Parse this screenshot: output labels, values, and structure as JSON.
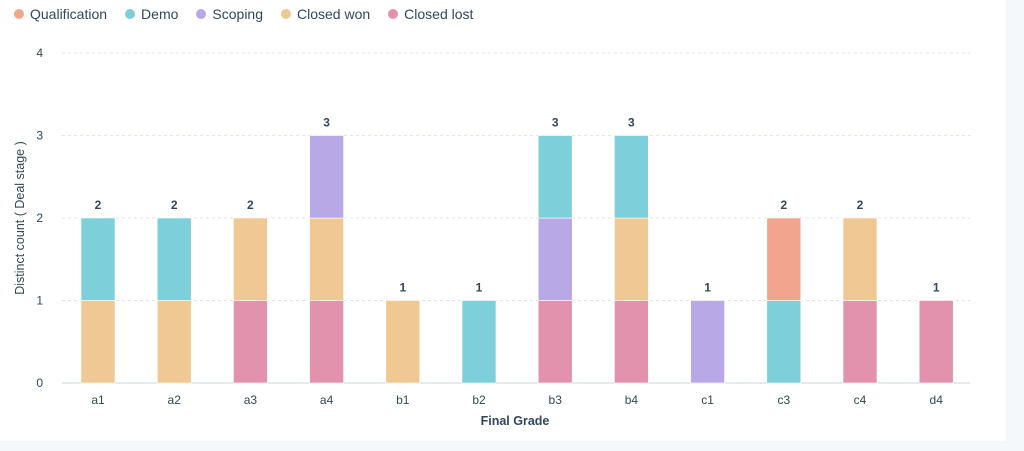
{
  "chart_data": {
    "type": "bar",
    "stacked": true,
    "categories": [
      "a1",
      "a2",
      "a3",
      "a4",
      "b1",
      "b2",
      "b3",
      "b4",
      "c1",
      "c3",
      "c4",
      "d4"
    ],
    "series": [
      {
        "name": "Qualification",
        "color": "#f2a58e",
        "values": [
          0,
          0,
          0,
          0,
          0,
          0,
          0,
          0,
          0,
          1,
          0,
          0
        ]
      },
      {
        "name": "Demo",
        "color": "#7dd0d9",
        "values": [
          1,
          1,
          0,
          0,
          0,
          1,
          1,
          1,
          0,
          1,
          0,
          0
        ]
      },
      {
        "name": "Scoping",
        "color": "#b9a8e6",
        "values": [
          0,
          0,
          0,
          1,
          0,
          0,
          1,
          0,
          1,
          0,
          0,
          0
        ]
      },
      {
        "name": "Closed won",
        "color": "#f0c894",
        "values": [
          1,
          1,
          1,
          1,
          1,
          0,
          0,
          1,
          0,
          0,
          1,
          0
        ]
      },
      {
        "name": "Closed lost",
        "color": "#e292ad",
        "values": [
          0,
          0,
          1,
          1,
          0,
          0,
          1,
          1,
          0,
          0,
          1,
          1
        ]
      }
    ],
    "totals": [
      "2",
      "2",
      "2",
      "3",
      "1",
      "1",
      "3",
      "3",
      "1",
      "2",
      "2",
      "1"
    ],
    "stack_order_bottom_to_top": [
      "Closed lost",
      "Closed won",
      "Scoping",
      "Demo",
      "Qualification"
    ],
    "xlabel": "Final Grade",
    "ylabel": "Distinct count ( Deal stage )",
    "ylim": [
      0,
      4
    ],
    "yticks": [
      "0",
      "1",
      "2",
      "3",
      "4"
    ],
    "grid": true,
    "legend": "top-left"
  }
}
